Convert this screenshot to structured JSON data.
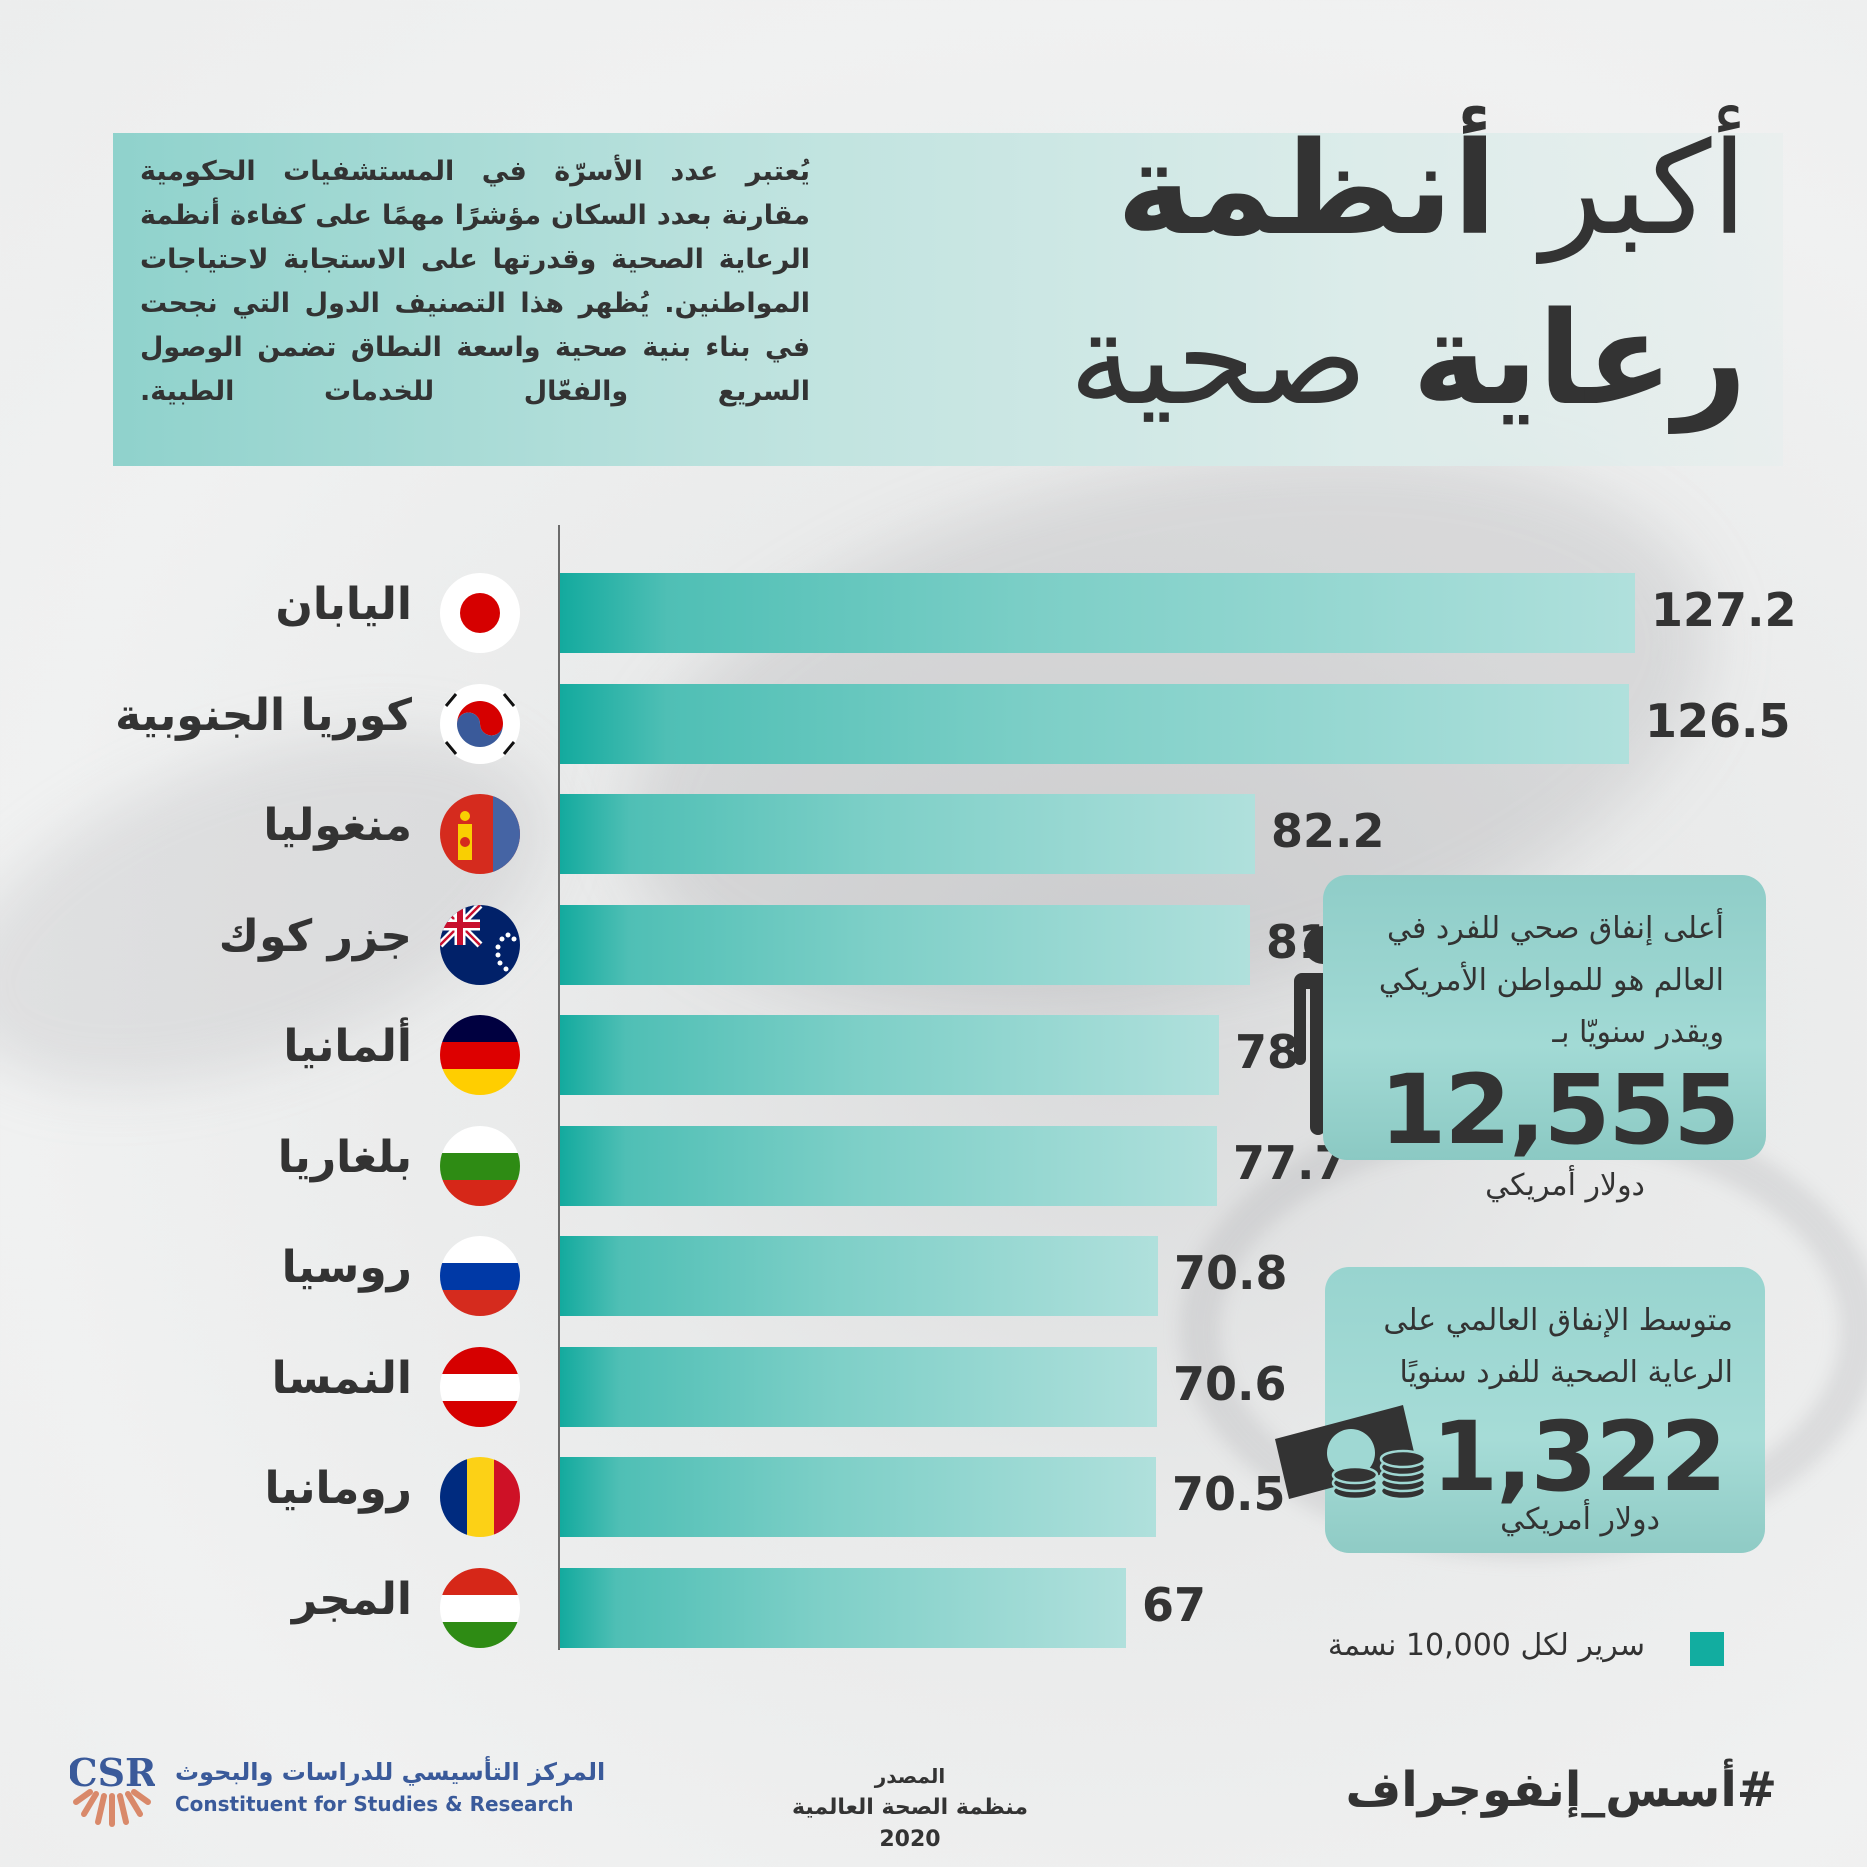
{
  "title": {
    "line1_light": "أكبر",
    "line1_heavy": "أنظمة",
    "line2_heavy": "رعاية",
    "line2_light": "صحية"
  },
  "intro": "يُعتبر عدد الأسرّة في المستشفيات الحكومية مقارنة بعدد السكان مؤشرًا مهمًا على كفاءة أنظمة الرعاية الصحية وقدرتها على الاستجابة لاحتياجات المواطنين. يُظهر هذا التصنيف الدول التي نجحت في بناء بنية صحية واسعة النطاق تضمن الوصول السريع والفعّال للخدمات الطبية.",
  "chart_data": {
    "type": "bar",
    "orientation": "horizontal",
    "title": "أكبر أنظمة رعاية صحية",
    "xlabel": "",
    "ylabel": "",
    "categories": [
      "اليابان",
      "كوريا الجنوبية",
      "منغوليا",
      "جزر كوك",
      "ألمانيا",
      "بلغاريا",
      "روسيا",
      "النمسا",
      "رومانيا",
      "المجر"
    ],
    "values": [
      127.2,
      126.5,
      82.2,
      81.6,
      78,
      77.7,
      70.8,
      70.6,
      70.5,
      67
    ],
    "value_labels": [
      "127.2",
      "126.5",
      "82.2",
      "81.6",
      "78",
      "77.7",
      "70.8",
      "70.6",
      "70.5",
      "67"
    ],
    "series": [
      {
        "name": "سرير لكل 10,000 نسمة",
        "color": "#12ada0",
        "values": [
          127.2,
          126.5,
          82.2,
          81.6,
          78,
          77.7,
          70.8,
          70.6,
          70.5,
          67
        ]
      }
    ],
    "legend": {
      "label": "سرير لكل 10,000 نسمة",
      "position": "bottom-right"
    },
    "grid": false,
    "xlim": [
      0,
      127.2
    ]
  },
  "countries": [
    {
      "name": "اليابان",
      "value": "127.2",
      "flag": "japan"
    },
    {
      "name": "كوريا الجنوبية",
      "value": "126.5",
      "flag": "south-korea"
    },
    {
      "name": "منغوليا",
      "value": "82.2",
      "flag": "mongolia"
    },
    {
      "name": "جزر كوك",
      "value": "81.6",
      "flag": "cook-islands"
    },
    {
      "name": "ألمانيا",
      "value": "78",
      "flag": "germany"
    },
    {
      "name": "بلغاريا",
      "value": "77.7",
      "flag": "bulgaria"
    },
    {
      "name": "روسيا",
      "value": "70.8",
      "flag": "russia"
    },
    {
      "name": "النمسا",
      "value": "70.6",
      "flag": "austria"
    },
    {
      "name": "رومانيا",
      "value": "70.5",
      "flag": "romania"
    },
    {
      "name": "المجر",
      "value": "67",
      "flag": "hungary"
    }
  ],
  "us_spending": {
    "text": "أعلى إنفاق صحي للفرد في العالم هو للمواطن الأمريكي ويقدر سنويّا بـ",
    "value": "12,555",
    "unit": "دولار أمريكي"
  },
  "global_spending": {
    "text": "متوسط الإنفاق العالمي على الرعاية الصحية للفرد سنويًا",
    "value": "1,322",
    "unit": "دولار أمريكي"
  },
  "legend": {
    "label": "سرير لكل 10,000 نسمة",
    "color": "#12ada0"
  },
  "footer": {
    "org_ar": "المركز التأسيسي للدراسات والبحوث",
    "org_en": "Constituent for Studies & Research",
    "logo_text": "CSR",
    "source_label": "المصدر",
    "source_text": "منظمة الصحة العالمية 2020",
    "hashtag": "#أسس_إنفوجراف"
  },
  "colors": {
    "accent": "#12ada0",
    "text": "#333333",
    "box": "#9fd8d3",
    "logo_blue": "#3a5a9a",
    "logo_orange": "#d9896a"
  }
}
